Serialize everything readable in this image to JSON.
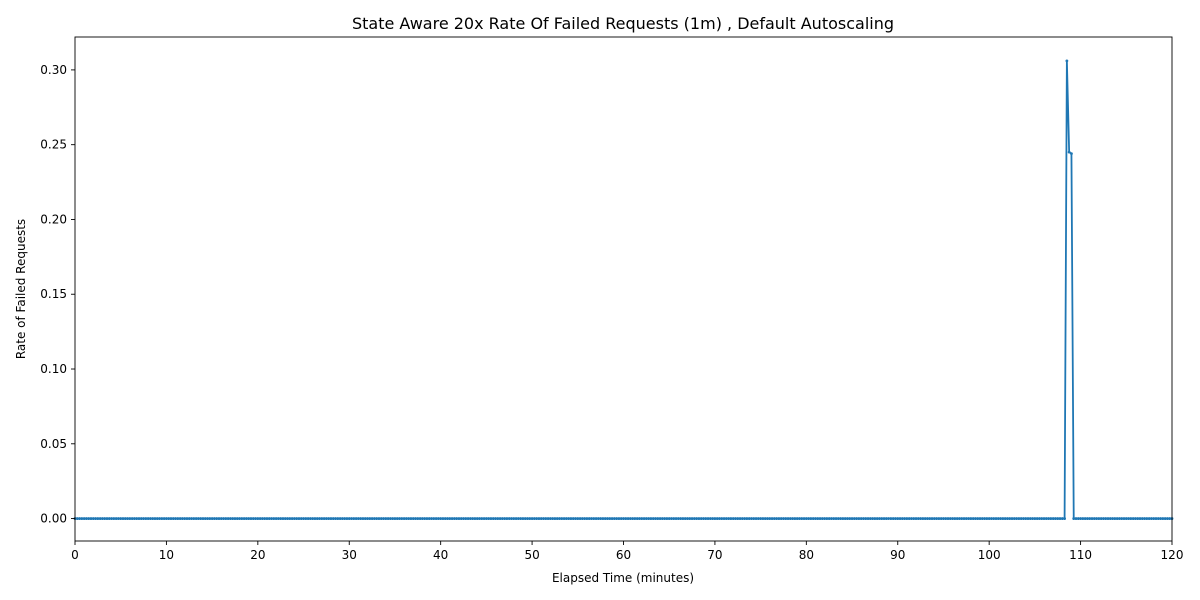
{
  "chart_data": {
    "type": "line",
    "title": "State Aware 20x Rate Of Failed Requests (1m) , Default Autoscaling",
    "xlabel": "Elapsed Time (minutes)",
    "ylabel": "Rate of Failed Requests",
    "xlim": [
      0,
      120
    ],
    "ylim": [
      -0.015,
      0.322
    ],
    "x_ticks": [
      0,
      10,
      20,
      30,
      40,
      50,
      60,
      70,
      80,
      90,
      100,
      110,
      120
    ],
    "x_tick_labels": [
      "0",
      "10",
      "20",
      "30",
      "40",
      "50",
      "60",
      "70",
      "80",
      "90",
      "100",
      "110",
      "120"
    ],
    "y_ticks": [
      0.0,
      0.05,
      0.1,
      0.15,
      0.2,
      0.25,
      0.3
    ],
    "y_tick_labels": [
      "0.00",
      "0.05",
      "0.10",
      "0.15",
      "0.20",
      "0.25",
      "0.30"
    ],
    "grid": false,
    "color": "#1f77b4",
    "series": [
      {
        "baseline_value": 0.0,
        "baseline_step": 0.25,
        "x": [
          0,
          108.25,
          108.5,
          108.75,
          109.0,
          109.25,
          120
        ],
        "values": [
          0.0,
          0.0,
          0.306,
          0.245,
          0.244,
          0.0,
          0.0
        ]
      }
    ]
  }
}
